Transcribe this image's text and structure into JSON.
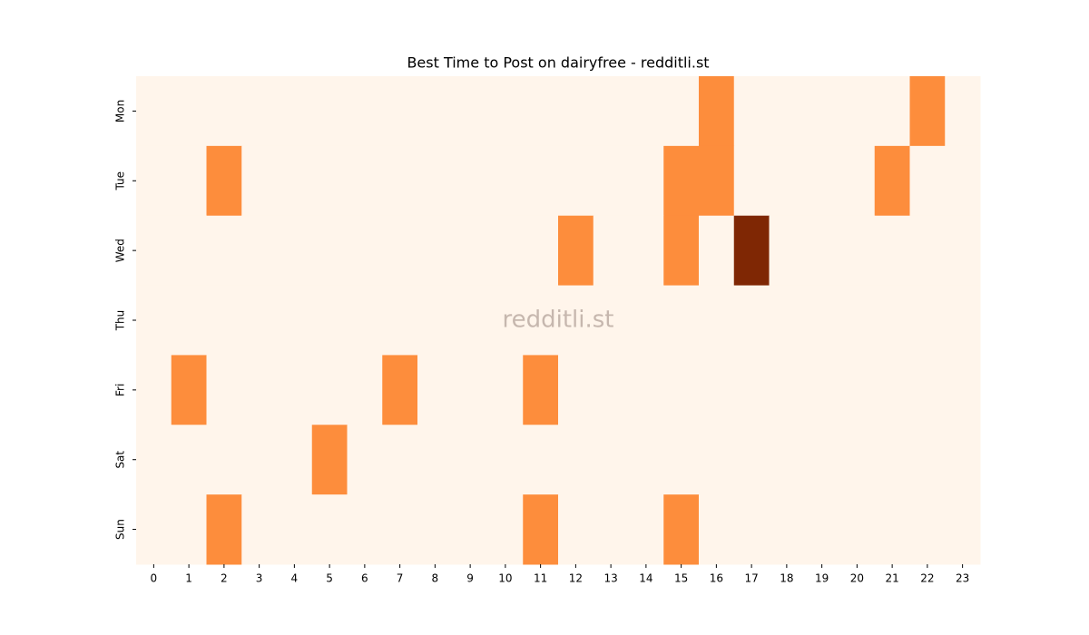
{
  "chart_data": {
    "type": "heatmap",
    "title": "Best Time to Post on dairyfree - redditli.st",
    "watermark": "redditli.st",
    "x": [
      0,
      1,
      2,
      3,
      4,
      5,
      6,
      7,
      8,
      9,
      10,
      11,
      12,
      13,
      14,
      15,
      16,
      17,
      18,
      19,
      20,
      21,
      22,
      23
    ],
    "y": [
      "Mon",
      "Tue",
      "Wed",
      "Thu",
      "Fri",
      "Sat",
      "Sun"
    ],
    "values": [
      [
        0,
        0,
        0,
        0,
        0,
        0,
        0,
        0,
        0,
        0,
        0,
        0,
        0,
        0,
        0,
        0,
        1,
        0,
        0,
        0,
        0,
        0,
        1,
        0
      ],
      [
        0,
        0,
        1,
        0,
        0,
        0,
        0,
        0,
        0,
        0,
        0,
        0,
        0,
        0,
        0,
        1,
        1,
        0,
        0,
        0,
        0,
        1,
        0,
        0
      ],
      [
        0,
        0,
        0,
        0,
        0,
        0,
        0,
        0,
        0,
        0,
        0,
        0,
        1,
        0,
        0,
        1,
        0,
        2,
        0,
        0,
        0,
        0,
        0,
        0
      ],
      [
        0,
        0,
        0,
        0,
        0,
        0,
        0,
        0,
        0,
        0,
        0,
        0,
        0,
        0,
        0,
        0,
        0,
        0,
        0,
        0,
        0,
        0,
        0,
        0
      ],
      [
        0,
        1,
        0,
        0,
        0,
        0,
        0,
        1,
        0,
        0,
        0,
        1,
        0,
        0,
        0,
        0,
        0,
        0,
        0,
        0,
        0,
        0,
        0,
        0
      ],
      [
        0,
        0,
        0,
        0,
        0,
        1,
        0,
        0,
        0,
        0,
        0,
        0,
        0,
        0,
        0,
        0,
        0,
        0,
        0,
        0,
        0,
        0,
        0,
        0
      ],
      [
        0,
        0,
        1,
        0,
        0,
        0,
        0,
        0,
        0,
        0,
        0,
        1,
        0,
        0,
        0,
        1,
        0,
        0,
        0,
        0,
        0,
        0,
        0,
        0
      ]
    ],
    "clim": [
      0,
      2
    ],
    "colormap": [
      "#fff5eb",
      "#fd8d3c",
      "#7f2704"
    ]
  }
}
